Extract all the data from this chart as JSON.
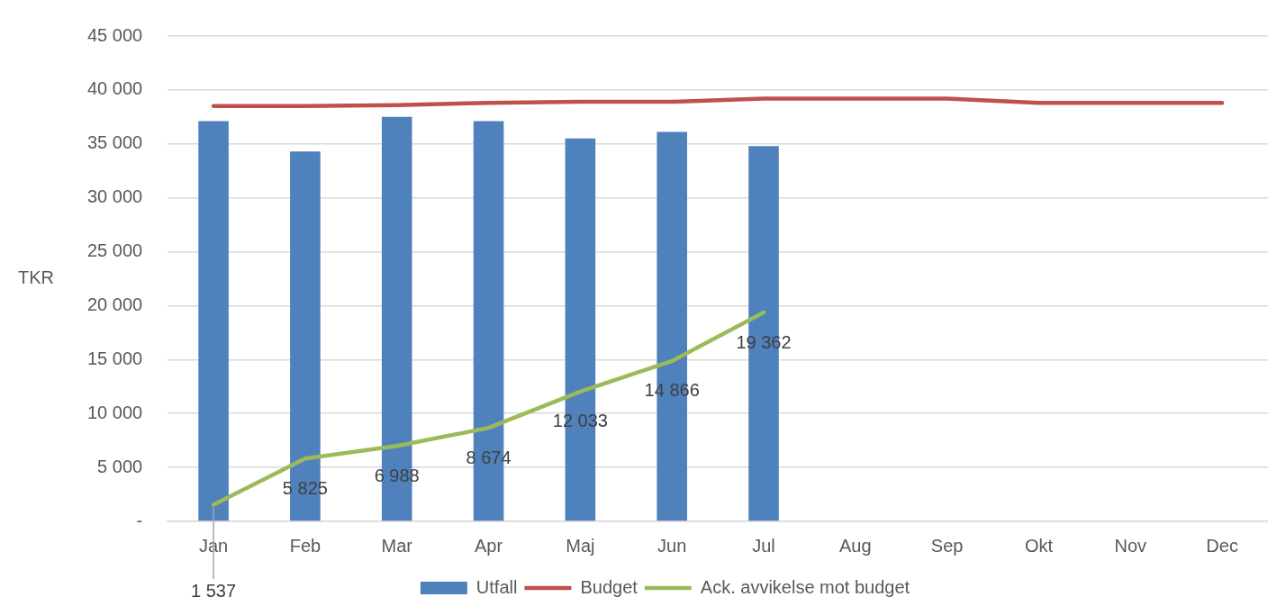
{
  "chart_data": {
    "type": "bar",
    "ylabel": "TKR",
    "categories": [
      "Jan",
      "Feb",
      "Mar",
      "Apr",
      "Maj",
      "Jun",
      "Jul",
      "Aug",
      "Sep",
      "Okt",
      "Nov",
      "Dec"
    ],
    "series": [
      {
        "name": "Utfall",
        "color": "#4f81bd",
        "values": [
          37100,
          34300,
          37500,
          37100,
          35500,
          36100,
          34800,
          null,
          null,
          null,
          null,
          null
        ]
      },
      {
        "name": "Budget",
        "type": "line",
        "color": "#c0504d",
        "values": [
          38500,
          38500,
          38600,
          38800,
          38900,
          38900,
          39200,
          39200,
          39200,
          38800,
          38800,
          38800
        ]
      },
      {
        "name": "Ack. avvikelse mot budget",
        "type": "line",
        "color": "#9bbb59",
        "values": [
          1537,
          5825,
          6988,
          8674,
          12033,
          14866,
          19362,
          null,
          null,
          null,
          null,
          null
        ],
        "value_labels": [
          "1 537",
          "5 825",
          "6 988",
          "8 674",
          "12 033",
          "14 866",
          "19 362",
          null,
          null,
          null,
          null,
          null
        ]
      }
    ],
    "ylim": [
      0,
      45000
    ],
    "yticks": [
      {
        "value": 0,
        "label": "-"
      },
      {
        "value": 5000,
        "label": "5 000"
      },
      {
        "value": 10000,
        "label": "10 000"
      },
      {
        "value": 15000,
        "label": "15 000"
      },
      {
        "value": 20000,
        "label": "20 000"
      },
      {
        "value": 25000,
        "label": "25 000"
      },
      {
        "value": 30000,
        "label": "30 000"
      },
      {
        "value": 35000,
        "label": "35 000"
      },
      {
        "value": 40000,
        "label": "40 000"
      },
      {
        "value": 45000,
        "label": "45 000"
      }
    ],
    "grid": "y",
    "legend": "bottom"
  }
}
